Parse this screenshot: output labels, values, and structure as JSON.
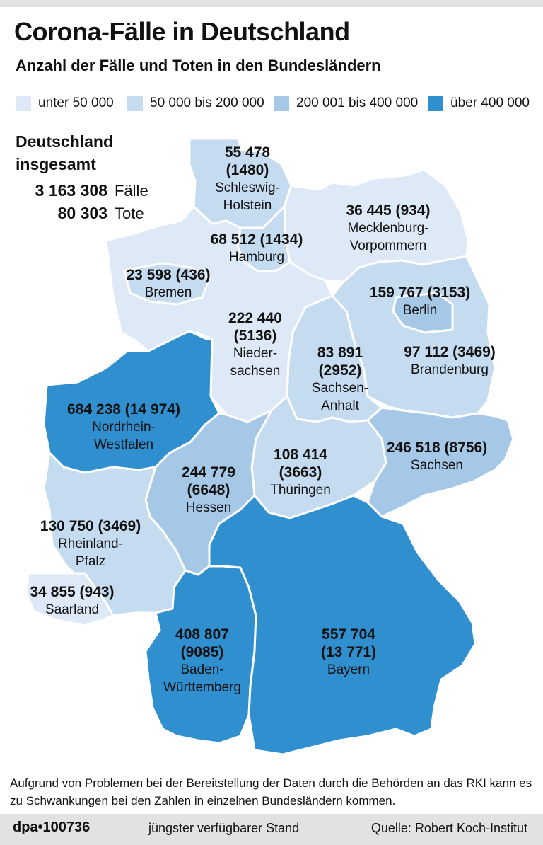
{
  "title": "Corona-Fälle in Deutschland",
  "subtitle": "Anzahl der Fälle und Toten in den Bundesländern",
  "legend": [
    {
      "label": "unter 50 000",
      "color": "#dde9f6"
    },
    {
      "label": "50 000 bis 200 000",
      "color": "#c5dbf0"
    },
    {
      "label": "200 001 bis 400 000",
      "color": "#a6c8e7"
    },
    {
      "label": "über 400 000",
      "color": "#2f8fcf"
    }
  ],
  "total": {
    "heading_line1": "Deutschland",
    "heading_line2": "insgesamt",
    "cases": "3 163 308",
    "cases_label": "Fälle",
    "deaths": "80 303",
    "deaths_label": "Tote"
  },
  "states": [
    {
      "value": "55 478",
      "value2": "(1480)",
      "name": "Schleswig-",
      "name2": "Holstein",
      "color": "#c5dbf0"
    },
    {
      "value": "36 445 (934)",
      "name": "Mecklenburg-",
      "name2": "Vorpommern",
      "color": "#dde9f6"
    },
    {
      "value": "68 512 (1434)",
      "name": "Hamburg",
      "color": "#c5dbf0"
    },
    {
      "value": "23 598 (436)",
      "name": "Bremen",
      "color": "#dde9f6"
    },
    {
      "value": "159 767 (3153)",
      "name": "Berlin",
      "color": "#c5dbf0"
    },
    {
      "value": "222 440",
      "value2": "(5136)",
      "name": "Nieder-",
      "name2": "sachsen",
      "color": "#a6c8e7"
    },
    {
      "value": "83 891",
      "value2": "(2952)",
      "name": "Sachsen-",
      "name2": "Anhalt",
      "color": "#c5dbf0"
    },
    {
      "value": "97 112 (3469)",
      "name": "Brandenburg",
      "color": "#c5dbf0"
    },
    {
      "value": "684 238 (14 974)",
      "name": "Nordrhein-",
      "name2": "Westfalen",
      "color": "#2f8fcf"
    },
    {
      "value": "108 414",
      "value2": "(3663)",
      "name": "Thüringen",
      "color": "#c5dbf0"
    },
    {
      "value": "246 518 (8756)",
      "name": "Sachsen",
      "color": "#a6c8e7"
    },
    {
      "value": "244 779",
      "value2": "(6648)",
      "name": "Hessen",
      "color": "#a6c8e7"
    },
    {
      "value": "130 750 (3469)",
      "name": "Rheinland-",
      "name2": "Pfalz",
      "color": "#c5dbf0"
    },
    {
      "value": "34 855 (943)",
      "name": "Saarland",
      "color": "#dde9f6"
    },
    {
      "value": "408 807",
      "value2": "(9085)",
      "name": "Baden-",
      "name2": "Württemberg",
      "color": "#2f8fcf"
    },
    {
      "value": "557 704",
      "value2": "(13 771)",
      "name": "Bayern",
      "color": "#2f8fcf"
    }
  ],
  "note": "Aufgrund von Problemen bei der Bereitstellung der Daten durch die Behörden an das RKI kann es zu Schwankungen bei den Zahlen in einzelnen Bundesländern kommen.",
  "footer": {
    "agency": "dpa•100736",
    "stand": "jüngster verfügbarer Stand",
    "source": "Quelle: Robert Koch-Institut"
  }
}
